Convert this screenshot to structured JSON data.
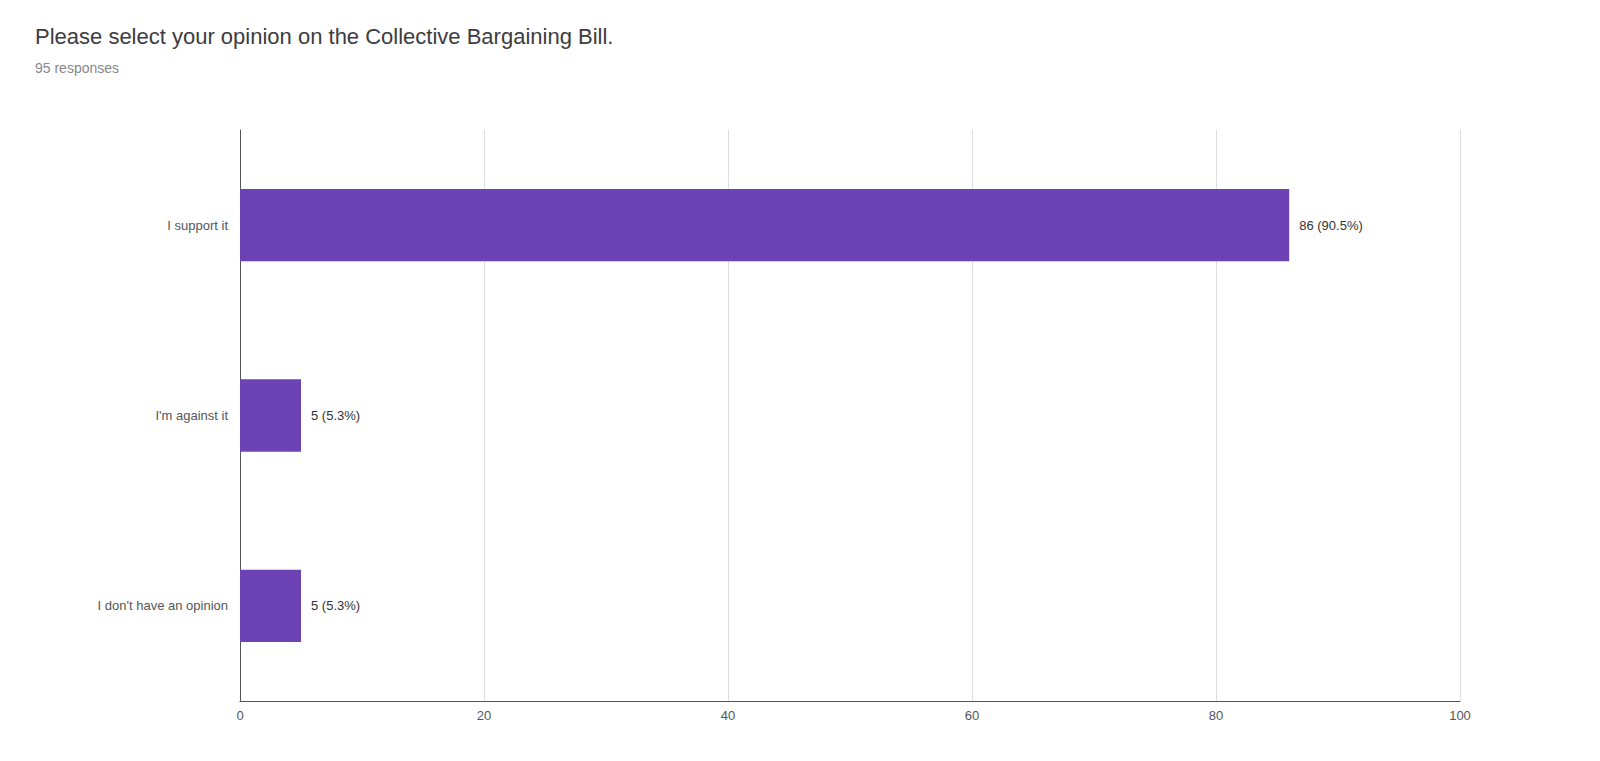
{
  "chart_data": {
    "type": "bar",
    "orientation": "horizontal",
    "title": "Please select your opinion on the Collective Bargaining Bill.",
    "subtitle": "95 responses",
    "categories": [
      "I support it",
      "I'm against it",
      "I don't have an opinion"
    ],
    "values": [
      86,
      5,
      5
    ],
    "value_labels": [
      "86 (90.5%)",
      "5 (5.3%)",
      "5 (5.3%)"
    ],
    "data_labels": true,
    "color": "#6d42b5",
    "xlim": [
      0,
      100
    ],
    "xticks": [
      0,
      20,
      40,
      60,
      80,
      100
    ],
    "grid": true
  }
}
